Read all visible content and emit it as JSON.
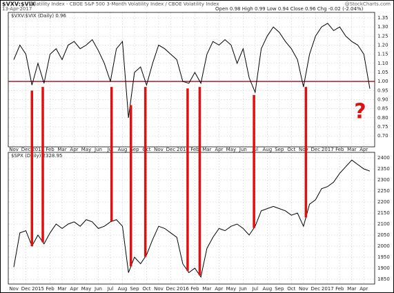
{
  "chart_data": [
    {
      "type": "line",
      "title": "$VXV:$VIX",
      "subtitle": "Volatility Index - CBOE S&P 500 3-Month Volatility Index / CBOE Volatility Index",
      "date": "13-Apr-2017",
      "quote": "Open 0.98 High 0.99 Low 0.94 Close 0.96 Chg -0.02 (-2.04%)",
      "watermark": "@StockCharts.com",
      "xlim": [
        -0.46,
        29.9
      ],
      "xticks": [
        {
          "value": 0,
          "label": "Nov"
        },
        {
          "value": 1,
          "label": "Dec"
        },
        {
          "value": 2,
          "label": "2015"
        },
        {
          "value": 3,
          "label": "Feb"
        },
        {
          "value": 4,
          "label": "Mar"
        },
        {
          "value": 5,
          "label": "Apr"
        },
        {
          "value": 6,
          "label": "May"
        },
        {
          "value": 7,
          "label": "Jun"
        },
        {
          "value": 8,
          "label": "Jul"
        },
        {
          "value": 9,
          "label": "Aug"
        },
        {
          "value": 10,
          "label": "Sep"
        },
        {
          "value": 11,
          "label": "Oct"
        },
        {
          "value": 12,
          "label": "Nov"
        },
        {
          "value": 13,
          "label": "Dec"
        },
        {
          "value": 14,
          "label": "2016"
        },
        {
          "value": 15,
          "label": "Feb"
        },
        {
          "value": 16,
          "label": "Mar"
        },
        {
          "value": 17,
          "label": "Apr"
        },
        {
          "value": 18,
          "label": "May"
        },
        {
          "value": 19,
          "label": "Jun"
        },
        {
          "value": 20,
          "label": "Jul"
        },
        {
          "value": 21,
          "label": "Aug"
        },
        {
          "value": 22,
          "label": "Sep"
        },
        {
          "value": 23,
          "label": "Oct"
        },
        {
          "value": 24,
          "label": "Nov"
        },
        {
          "value": 25,
          "label": "Dec"
        },
        {
          "value": 26,
          "label": "2017"
        },
        {
          "value": 27,
          "label": "Feb"
        },
        {
          "value": 28,
          "label": "Mar"
        },
        {
          "value": 29,
          "label": "Apr"
        }
      ],
      "ylim": [
        0.64,
        1.38
      ],
      "yticks": [
        {
          "value": 0.7,
          "label": "0.70"
        },
        {
          "value": 0.75,
          "label": "0.75"
        },
        {
          "value": 0.8,
          "label": "0.80"
        },
        {
          "value": 0.85,
          "label": "0.85"
        },
        {
          "value": 0.9,
          "label": "0.90"
        },
        {
          "value": 0.95,
          "label": "0.95"
        },
        {
          "value": 1,
          "label": "1.00"
        },
        {
          "value": 1.05,
          "label": "1.05"
        },
        {
          "value": 1.1,
          "label": "1.10"
        },
        {
          "value": 1.15,
          "label": "1.15"
        },
        {
          "value": 1.2,
          "label": "1.20"
        },
        {
          "value": 1.25,
          "label": "1.25"
        },
        {
          "value": 1.3,
          "label": "1.30"
        },
        {
          "value": 1.35,
          "label": "1.35"
        }
      ],
      "grid": true,
      "x": [
        0,
        0.5,
        1,
        1.5,
        2,
        2.5,
        3,
        3.5,
        4,
        4.5,
        5,
        5.5,
        6,
        6.5,
        7,
        7.5,
        8,
        8.5,
        9,
        9.5,
        10,
        10.5,
        11,
        11.5,
        12,
        12.5,
        13,
        13.5,
        14,
        14.5,
        15,
        15.5,
        16,
        16.5,
        17,
        17.5,
        18,
        18.5,
        19,
        19.5,
        20,
        20.5,
        21,
        21.5,
        22,
        22.5,
        23,
        23.5,
        24,
        24.5,
        25,
        25.5,
        26,
        26.5,
        27,
        27.5,
        28,
        28.5,
        29,
        29.5
      ],
      "series": [
        {
          "name": "$VXV:$VIX (Daily) 0.96",
          "color": "#000000",
          "values": [
            1.12,
            1.2,
            1.15,
            0.98,
            1.1,
            0.99,
            1.15,
            1.18,
            1.12,
            1.2,
            1.22,
            1.18,
            1.2,
            1.23,
            1.17,
            1.1,
            1.0,
            1.18,
            1.22,
            0.8,
            1.05,
            1.08,
            0.98,
            1.1,
            1.2,
            1.18,
            1.15,
            1.12,
            1.0,
            0.99,
            1.05,
            0.99,
            1.15,
            1.22,
            1.2,
            1.23,
            1.2,
            1.1,
            1.18,
            1.02,
            0.94,
            1.18,
            1.25,
            1.3,
            1.27,
            1.22,
            1.18,
            1.12,
            0.97,
            1.15,
            1.25,
            1.3,
            1.32,
            1.28,
            1.3,
            1.25,
            1.22,
            1.2,
            1.15,
            0.96
          ]
        }
      ],
      "reference_line": {
        "value": 1.0,
        "color": "#b0182c"
      },
      "highlight_x": [
        1.5,
        2.4,
        8.1,
        9.7,
        10.9,
        14.4,
        15.4,
        19.9,
        24.2
      ],
      "highlight_color": "#e01010",
      "annotation": "?"
    },
    {
      "type": "line",
      "xlim": [
        -0.46,
        29.9
      ],
      "xticks": [
        {
          "value": 0,
          "label": "Nov"
        },
        {
          "value": 1,
          "label": "Dec"
        },
        {
          "value": 2,
          "label": "2015"
        },
        {
          "value": 3,
          "label": "Feb"
        },
        {
          "value": 4,
          "label": "Mar"
        },
        {
          "value": 5,
          "label": "Apr"
        },
        {
          "value": 6,
          "label": "May"
        },
        {
          "value": 7,
          "label": "Jun"
        },
        {
          "value": 8,
          "label": "Jul"
        },
        {
          "value": 9,
          "label": "Aug"
        },
        {
          "value": 10,
          "label": "Sep"
        },
        {
          "value": 11,
          "label": "Oct"
        },
        {
          "value": 12,
          "label": "Nov"
        },
        {
          "value": 13,
          "label": "Dec"
        },
        {
          "value": 14,
          "label": "2016"
        },
        {
          "value": 15,
          "label": "Feb"
        },
        {
          "value": 16,
          "label": "Mar"
        },
        {
          "value": 17,
          "label": "Apr"
        },
        {
          "value": 18,
          "label": "May"
        },
        {
          "value": 19,
          "label": "Jun"
        },
        {
          "value": 20,
          "label": "Jul"
        },
        {
          "value": 21,
          "label": "Aug"
        },
        {
          "value": 22,
          "label": "Sep"
        },
        {
          "value": 23,
          "label": "Oct"
        },
        {
          "value": 24,
          "label": "Nov"
        },
        {
          "value": 25,
          "label": "Dec"
        },
        {
          "value": 26,
          "label": "2017"
        },
        {
          "value": 27,
          "label": "Feb"
        },
        {
          "value": 28,
          "label": "Mar"
        },
        {
          "value": 29,
          "label": "Apr"
        }
      ],
      "ylim": [
        1828,
        2425
      ],
      "yticks": [
        1850,
        1900,
        1950,
        2000,
        2050,
        2100,
        2150,
        2200,
        2250,
        2300,
        2350,
        2400
      ],
      "grid": true,
      "x": [
        0,
        0.5,
        1,
        1.5,
        2,
        2.5,
        3,
        3.5,
        4,
        4.5,
        5,
        5.5,
        6,
        6.5,
        7,
        7.5,
        8,
        8.5,
        9,
        9.5,
        10,
        10.5,
        11,
        11.5,
        12,
        12.5,
        13,
        13.5,
        14,
        14.5,
        15,
        15.5,
        16,
        16.5,
        17,
        17.5,
        18,
        18.5,
        19,
        19.5,
        20,
        20.5,
        21,
        21.5,
        22,
        22.5,
        23,
        23.5,
        24,
        24.5,
        25,
        25.5,
        26,
        26.5,
        27,
        27.5,
        28,
        28.5,
        29,
        29.5
      ],
      "series": [
        {
          "name": "$SPX (Daily) 2328.95",
          "color": "#000000",
          "values": [
            1905,
            2060,
            2070,
            2000,
            2050,
            2010,
            2060,
            2100,
            2080,
            2100,
            2110,
            2090,
            2120,
            2110,
            2080,
            2090,
            2110,
            2120,
            2090,
            1880,
            1950,
            1920,
            1960,
            2030,
            2090,
            2080,
            2060,
            2040,
            1920,
            1880,
            1900,
            1860,
            1990,
            2040,
            2080,
            2070,
            2090,
            2100,
            2080,
            2050,
            2090,
            2160,
            2170,
            2180,
            2170,
            2160,
            2140,
            2150,
            2090,
            2190,
            2210,
            2260,
            2270,
            2290,
            2330,
            2360,
            2390,
            2370,
            2350,
            2340
          ]
        }
      ]
    }
  ]
}
